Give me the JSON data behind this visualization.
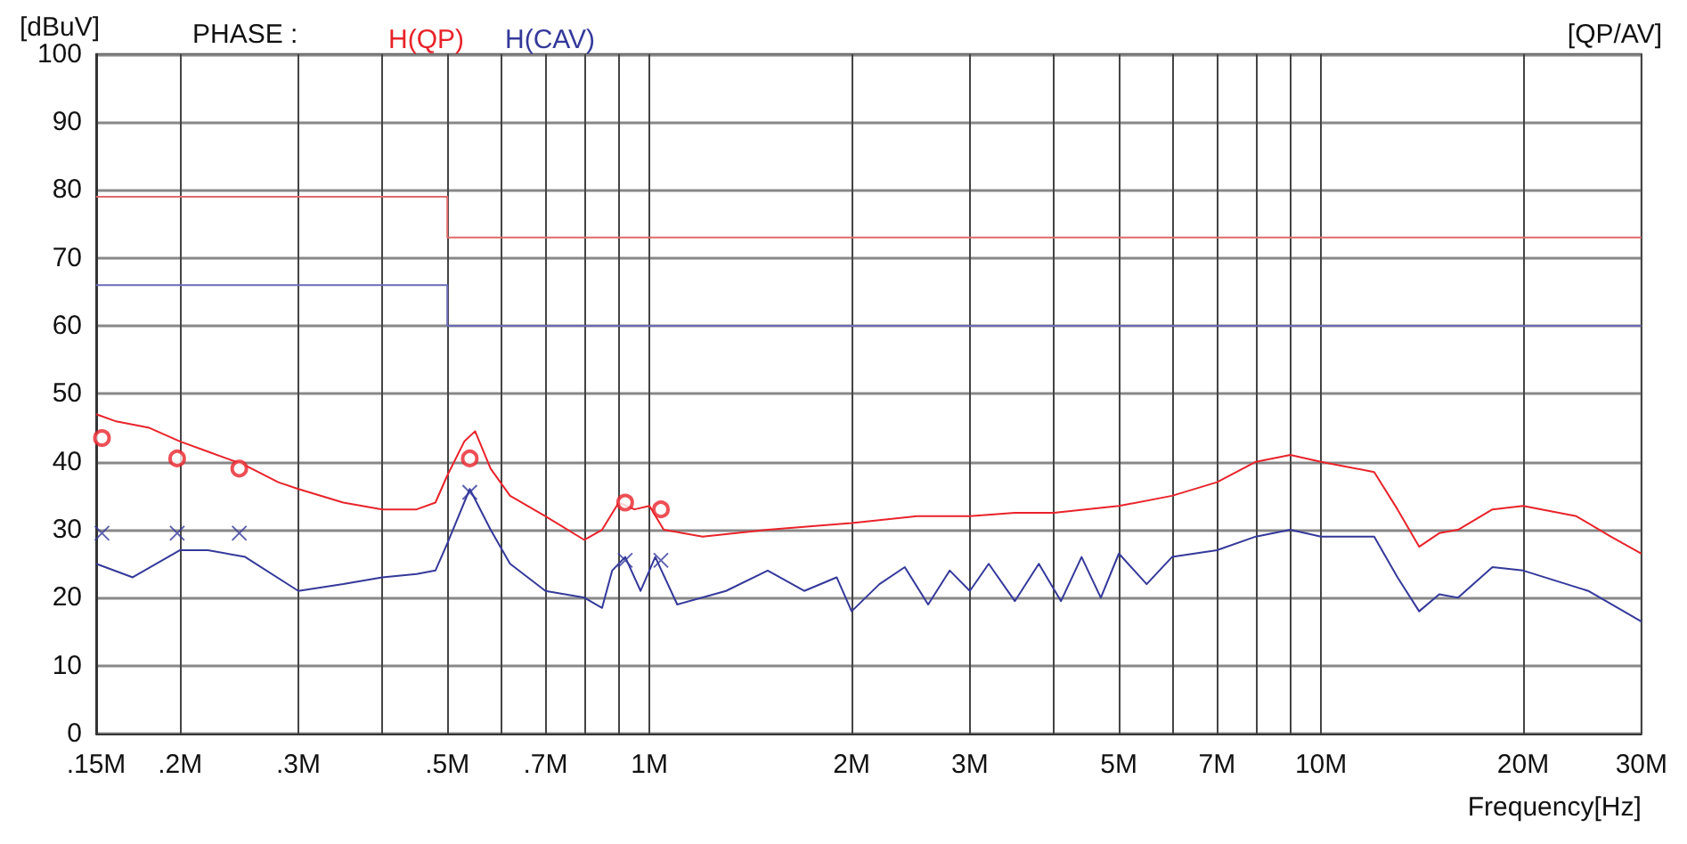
{
  "chart_data": {
    "type": "line",
    "ylabel": "[dBuV]",
    "xlabel": "Frequency[Hz]",
    "legend_title": "PHASE :",
    "annotations": [
      "[QP/AV]"
    ],
    "log": "x",
    "grid": true,
    "legend": "top left",
    "marker": "none",
    "xlim": [
      0.15,
      30
    ],
    "ylim": [
      0,
      100
    ],
    "xticks": [
      {
        "value": 0.15,
        "label": ".15M"
      },
      {
        "value": 0.2,
        "label": ".2M"
      },
      {
        "value": 0.3,
        "label": ".3M"
      },
      {
        "value": 0.4,
        "label": null
      },
      {
        "value": 0.5,
        "label": ".5M"
      },
      {
        "value": 0.6,
        "label": null
      },
      {
        "value": 0.7,
        "label": ".7M"
      },
      {
        "value": 0.8,
        "label": null
      },
      {
        "value": 0.9,
        "label": null
      },
      {
        "value": 1,
        "label": "1M"
      },
      {
        "value": 2,
        "label": "2M"
      },
      {
        "value": 3,
        "label": "3M"
      },
      {
        "value": 4,
        "label": null
      },
      {
        "value": 5,
        "label": "5M"
      },
      {
        "value": 6,
        "label": null
      },
      {
        "value": 7,
        "label": "7M"
      },
      {
        "value": 8,
        "label": null
      },
      {
        "value": 9,
        "label": null
      },
      {
        "value": 10,
        "label": "10M"
      },
      {
        "value": 20,
        "label": "20M"
      },
      {
        "value": 30,
        "label": "30M"
      }
    ],
    "yticks": [
      0,
      10,
      20,
      30,
      40,
      50,
      60,
      70,
      80,
      90,
      100
    ],
    "series": [
      {
        "name": "H(QP)",
        "color": "#e8232a",
        "x": [
          0.15,
          0.16,
          0.18,
          0.2,
          0.22,
          0.25,
          0.28,
          0.3,
          0.35,
          0.4,
          0.45,
          0.48,
          0.5,
          0.53,
          0.55,
          0.58,
          0.62,
          0.7,
          0.8,
          0.85,
          0.9,
          0.95,
          1.0,
          1.05,
          1.2,
          1.5,
          2,
          2.5,
          3,
          3.5,
          4,
          5,
          6,
          7,
          8,
          9,
          10,
          12,
          13,
          14,
          15,
          16,
          18,
          20,
          24,
          27,
          30
        ],
        "values": [
          47,
          46,
          45,
          43,
          41.5,
          39.5,
          37,
          36,
          34,
          33,
          33,
          34,
          38,
          43,
          44.5,
          39,
          35,
          32,
          28.5,
          30,
          34,
          33,
          33.5,
          30,
          29,
          30,
          31,
          32,
          32,
          32.5,
          32.5,
          33.5,
          35,
          37,
          40,
          41,
          40,
          38.5,
          33,
          27.5,
          29.5,
          30,
          33,
          33.5,
          32,
          29,
          26.5
        ]
      },
      {
        "name": "H(CAV)",
        "color": "#34399a",
        "x": [
          0.15,
          0.17,
          0.2,
          0.22,
          0.25,
          0.3,
          0.35,
          0.4,
          0.45,
          0.48,
          0.5,
          0.54,
          0.58,
          0.62,
          0.7,
          0.8,
          0.85,
          0.88,
          0.92,
          0.97,
          1.02,
          1.1,
          1.3,
          1.5,
          1.7,
          1.9,
          2,
          2.2,
          2.4,
          2.6,
          2.8,
          3,
          3.2,
          3.5,
          3.8,
          4.1,
          4.4,
          4.7,
          5,
          5.5,
          6,
          7,
          8,
          9,
          10,
          12,
          13,
          14,
          15,
          16,
          18,
          20,
          25,
          30
        ],
        "values": [
          25,
          23,
          27,
          27,
          26,
          21,
          22,
          23,
          23.5,
          24,
          28,
          36,
          30,
          25,
          21,
          20,
          18.5,
          24,
          26,
          21,
          26,
          19,
          21,
          24,
          21,
          23,
          18,
          22,
          24.5,
          19,
          24,
          21,
          25,
          19.5,
          25,
          19.5,
          26,
          20,
          26.5,
          22,
          26,
          27,
          29,
          30,
          29,
          29,
          23,
          18,
          20.5,
          20,
          24.5,
          24,
          21,
          16.5
        ]
      },
      {
        "color": "#e06a6a",
        "x": [
          0.15,
          0.5,
          0.5,
          30
        ],
        "values": [
          79,
          79,
          73,
          73
        ]
      },
      {
        "color": "#6a6ab8",
        "x": [
          0.15,
          0.5,
          0.5,
          30
        ],
        "values": [
          66,
          66,
          60,
          60
        ]
      },
      {
        "type": "scatter",
        "marker": "circle",
        "color": "#e8232a",
        "x": [
          0.153,
          0.198,
          0.245,
          0.54,
          0.92,
          1.04
        ],
        "values": [
          43.5,
          40.5,
          39,
          40.5,
          34,
          33
        ]
      },
      {
        "type": "scatter",
        "marker": "cross",
        "color": "#34399a",
        "x": [
          0.153,
          0.198,
          0.245,
          0.54,
          0.92,
          1.04
        ],
        "values": [
          29.5,
          29.5,
          29.5,
          35.5,
          25.5,
          25.5
        ]
      }
    ]
  }
}
